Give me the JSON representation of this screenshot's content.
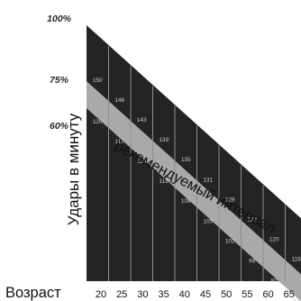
{
  "chart_data": {
    "type": "area",
    "title": "",
    "xlabel": "Возраст",
    "ylabel": "Удары в минуту",
    "band_label": "рекомендуемый интервал",
    "y_percent_ticks": [
      "100%",
      "75%",
      "60%"
    ],
    "age_ticks": [
      "20",
      "25",
      "30",
      "35",
      "40",
      "45",
      "50",
      "55",
      "60",
      "65"
    ],
    "ages": [
      20,
      25,
      30,
      35,
      40,
      45,
      50,
      55,
      60,
      65
    ],
    "upper_bpm": [
      150,
      146,
      143,
      139,
      135,
      131,
      128,
      124,
      120,
      116
    ],
    "lower_bpm": [
      120,
      117,
      114,
      111,
      108,
      105,
      102,
      99,
      97,
      93
    ],
    "colors": {
      "fill": "#242424",
      "band": "#a9a9a9",
      "grid": "#8e8e8e",
      "labels": "#cfcfcf"
    }
  }
}
